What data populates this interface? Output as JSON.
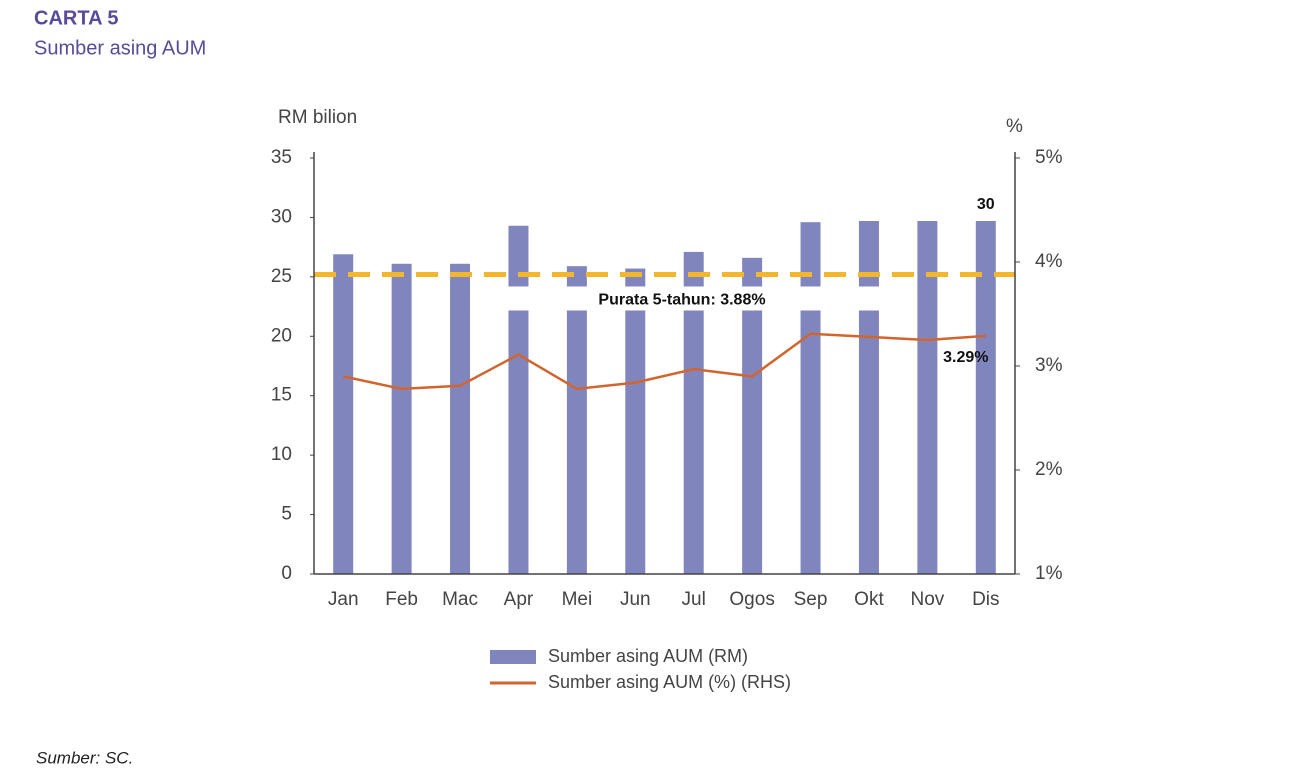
{
  "chart_data": {
    "type": "bar",
    "title": "CARTA 5",
    "subtitle": "Sumber asing AUM",
    "y_label": "RM bilion",
    "y2_label": "%",
    "categories": [
      "Jan",
      "Feb",
      "Mac",
      "Apr",
      "Mei",
      "Jun",
      "Jul",
      "Ogos",
      "Sep",
      "Okt",
      "Nov",
      "Dis"
    ],
    "series": [
      {
        "name": "Sumber asing AUM (RM)",
        "type": "bar",
        "color": "#8086bd",
        "values": [
          26.9,
          26.1,
          26.1,
          29.3,
          25.9,
          25.7,
          27.1,
          26.6,
          29.6,
          29.7,
          29.7,
          29.7
        ],
        "value_labels": [
          null,
          null,
          null,
          null,
          null,
          null,
          null,
          null,
          null,
          null,
          null,
          "30"
        ]
      },
      {
        "name": "Sumber asing AUM (%) (RHS)",
        "type": "line",
        "axis": "y2",
        "color": "#d2652e",
        "values": [
          2.9,
          2.78,
          2.81,
          3.11,
          2.78,
          2.84,
          2.97,
          2.9,
          3.31,
          3.28,
          3.25,
          3.29
        ],
        "value_labels": [
          null,
          null,
          null,
          null,
          null,
          null,
          null,
          null,
          null,
          null,
          null,
          "3.29%"
        ]
      }
    ],
    "reference_line": {
      "value": 3.88,
      "axis": "y2",
      "label": "Purata 5-tahun: 3.88%",
      "color": "#f4b62a"
    },
    "ylim": [
      0,
      35
    ],
    "yticks": [
      0,
      5,
      10,
      15,
      20,
      25,
      30,
      35
    ],
    "y2lim": [
      1,
      5
    ],
    "y2ticks": [
      {
        "value": 1,
        "label": "1%"
      },
      {
        "value": 2,
        "label": "2%"
      },
      {
        "value": 3,
        "label": "3%"
      },
      {
        "value": 4,
        "label": "4%"
      },
      {
        "value": 5,
        "label": "5%"
      }
    ],
    "source": "Sumber: SC."
  }
}
